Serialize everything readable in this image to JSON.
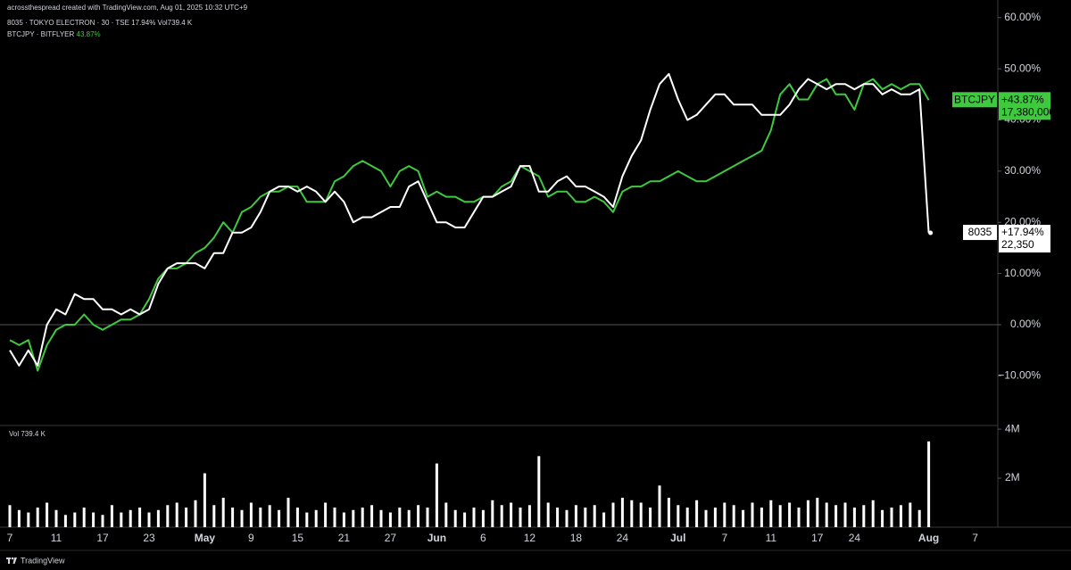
{
  "chart_data": {
    "type": "line",
    "credit": "acrossthespread created with TradingView.com, Aug 01, 2025 10:32 UTC+9",
    "brand": "TradingView",
    "categories": [
      "7",
      null,
      null,
      null,
      null,
      "11",
      null,
      null,
      null,
      null,
      "17",
      null,
      null,
      null,
      null,
      "23",
      null,
      null,
      null,
      null,
      null,
      "May",
      null,
      null,
      null,
      null,
      "9",
      null,
      null,
      null,
      null,
      "15",
      null,
      null,
      null,
      null,
      "21",
      null,
      null,
      null,
      null,
      "27",
      null,
      null,
      null,
      null,
      "Jun",
      null,
      null,
      null,
      null,
      "6",
      null,
      null,
      null,
      null,
      "12",
      null,
      null,
      null,
      null,
      "18",
      null,
      null,
      null,
      null,
      "24",
      null,
      null,
      null,
      null,
      null,
      "Jul",
      null,
      null,
      null,
      null,
      "7",
      null,
      null,
      null,
      null,
      "11",
      null,
      null,
      null,
      null,
      "17",
      null,
      null,
      null,
      "24",
      null,
      null,
      null,
      null,
      null,
      null,
      null,
      "Aug",
      null,
      null,
      null,
      null,
      "7"
    ],
    "ylim": [
      -19.7,
      61.7
    ],
    "yticks": [
      {
        "value": 60,
        "label": "60.00%"
      },
      {
        "value": 50,
        "label": "50.00%"
      },
      {
        "value": 40,
        "label": "40.00%"
      },
      {
        "value": 30,
        "label": "30.00%"
      },
      {
        "value": 20,
        "label": "20.00%"
      },
      {
        "value": 10,
        "label": "10.00%"
      },
      {
        "value": 0,
        "label": "0.00%"
      },
      {
        "value": -10,
        "label": "−10.00%"
      }
    ],
    "zero_line": true,
    "series": [
      {
        "name": "8035",
        "legend": "8035 · TOKYO ELECTRON · 30 · TSE",
        "legend_value": "17.94%",
        "volume_text": "Vol739.4 K",
        "change_label": "+17.94%",
        "price_label": "22,350",
        "color": "#ffffff",
        "values": [
          -5,
          -8,
          -5,
          -8,
          0,
          3,
          2,
          6,
          5,
          5,
          3,
          3,
          2,
          3,
          2,
          3,
          8,
          11,
          12,
          12,
          12,
          11,
          14,
          14,
          18,
          18,
          19,
          22,
          26,
          27,
          27,
          26,
          27,
          26,
          24,
          26,
          24,
          20,
          21,
          21,
          22,
          23,
          23,
          27,
          28,
          24,
          20,
          20,
          19,
          19,
          22,
          25,
          25,
          26,
          27,
          31,
          31,
          26,
          26,
          28,
          29,
          27,
          27,
          26,
          25,
          23,
          29,
          33,
          36,
          42,
          47,
          49,
          44,
          40,
          41,
          43,
          45,
          45,
          43,
          43,
          43,
          41,
          41,
          41,
          43,
          46,
          48,
          47,
          46,
          47,
          47,
          46,
          47,
          47,
          45,
          46,
          45,
          45,
          46,
          17.94,
          null,
          null,
          null,
          null,
          null
        ]
      },
      {
        "name": "BTCJPY",
        "legend": "BTCJPY · BITFLYER",
        "legend_value": "43.87%",
        "change_label": "+43.87%",
        "price_label": "17,380,000",
        "color": "#3ec93e",
        "values": [
          -3,
          -4,
          -3,
          -9,
          -4,
          -1,
          0,
          0,
          2,
          0,
          -1,
          0,
          1,
          1,
          2,
          5,
          9,
          11,
          11,
          12,
          14,
          15,
          17,
          20,
          18,
          22,
          23,
          25,
          26,
          26,
          27,
          27,
          24,
          24,
          24,
          28,
          29,
          31,
          32,
          31,
          30,
          27,
          30,
          31,
          30,
          25,
          26,
          25,
          25,
          24,
          24,
          25,
          25,
          27,
          28,
          31,
          30,
          29,
          25,
          26,
          26,
          24,
          24,
          25,
          24,
          22,
          26,
          27,
          27,
          28,
          28,
          29,
          30,
          29,
          28,
          28,
          29,
          30,
          31,
          32,
          33,
          34,
          38,
          45,
          47,
          44,
          44,
          47,
          48,
          45,
          45,
          42,
          47,
          48,
          46,
          47,
          46,
          47,
          47,
          43.87,
          null,
          null,
          null,
          null,
          null
        ]
      }
    ],
    "volume": {
      "label": "Vol",
      "last_label": "739.4 K",
      "color": "#ffffff",
      "ylim": [
        0,
        4150000
      ],
      "yticks": [
        {
          "value": 2000000,
          "label": "2M"
        },
        {
          "value": 4000000,
          "label": "4M"
        }
      ],
      "values": [
        900000,
        700000,
        600000,
        800000,
        1000000,
        700000,
        500000,
        600000,
        800000,
        600000,
        500000,
        900000,
        600000,
        700000,
        800000,
        600000,
        700000,
        900000,
        1000000,
        800000,
        1100000,
        2200000,
        900000,
        1200000,
        800000,
        700000,
        1000000,
        800000,
        900000,
        700000,
        1200000,
        800000,
        600000,
        700000,
        1000000,
        800000,
        600000,
        700000,
        800000,
        900000,
        700000,
        600000,
        800000,
        700000,
        900000,
        800000,
        2600000,
        1000000,
        700000,
        600000,
        800000,
        700000,
        1100000,
        900000,
        1000000,
        800000,
        900000,
        2900000,
        1000000,
        800000,
        700000,
        900000,
        800000,
        900000,
        600000,
        1000000,
        1200000,
        1100000,
        1000000,
        800000,
        1700000,
        1200000,
        900000,
        800000,
        1100000,
        700000,
        800000,
        1000000,
        900000,
        700000,
        1000000,
        800000,
        1100000,
        900000,
        1000000,
        800000,
        1100000,
        1200000,
        1000000,
        900000,
        1000000,
        800000,
        900000,
        1100000,
        700000,
        800000,
        900000,
        1000000,
        700000,
        3500000,
        null,
        null,
        null,
        null,
        null
      ]
    }
  }
}
